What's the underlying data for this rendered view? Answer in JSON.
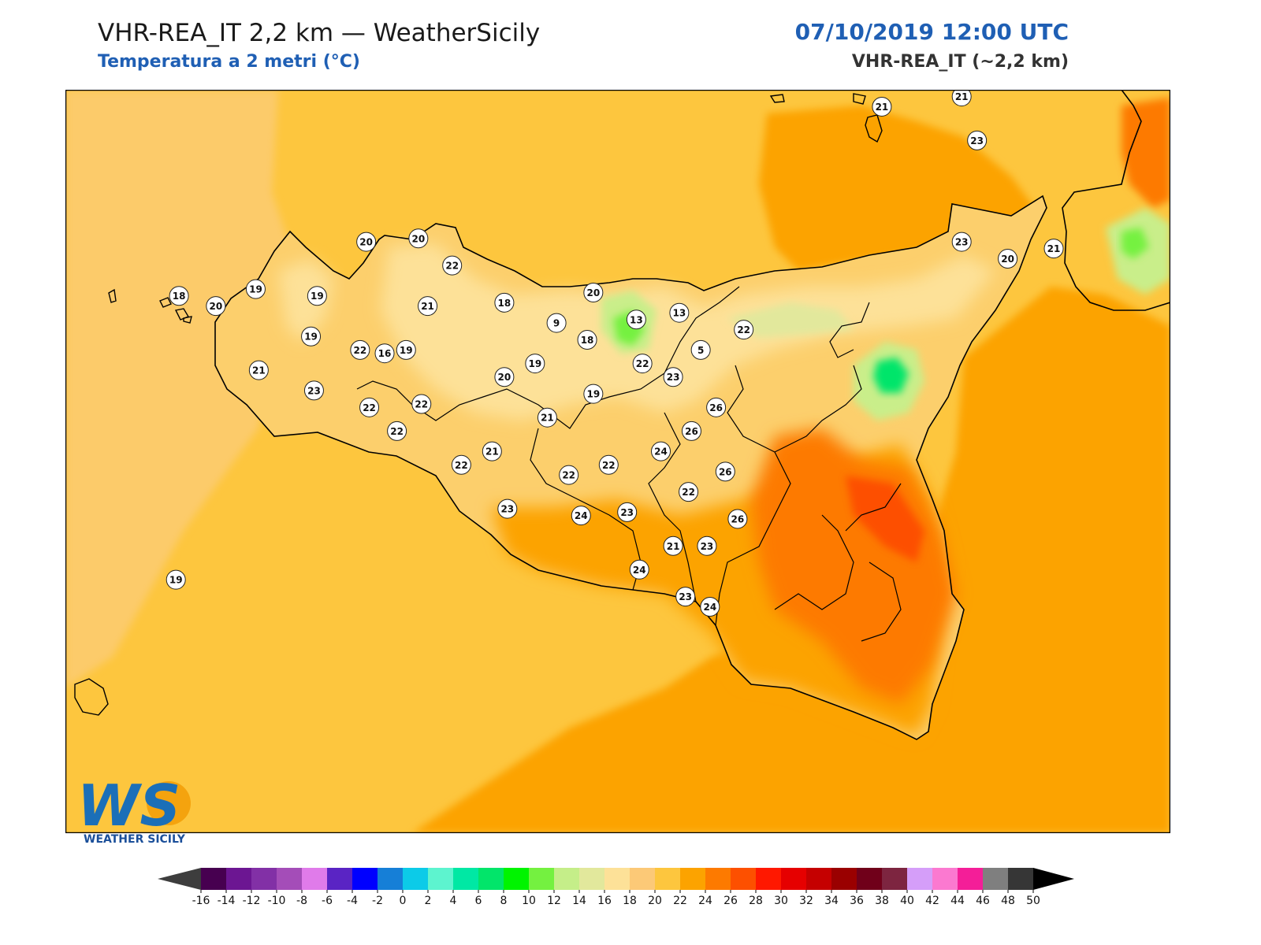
{
  "header": {
    "title": "VHR-REA_IT 2,2 km — WeatherSicily",
    "subtitle": "Temperatura a 2 metri (°C)",
    "datetime": "07/10/2019 12:00 UTC",
    "model": "VHR-REA_IT (~2,2 km)"
  },
  "colors": {
    "sea": "#fdc63e",
    "sea_warm": "#fca300",
    "land_base": "#fccf6c",
    "hot": "#fd7a00",
    "very_hot": "#fd5000",
    "cool": "#fde198",
    "cold": "#c9ee8a",
    "coldest": "#25e039",
    "coast": "#000000",
    "title_blue": "#1f5fb4"
  },
  "labels": [
    {
      "v": "21",
      "x": 14.66,
      "y": 38.55
    },
    {
      "v": "21",
      "x": 14.92,
      "y": 38.58
    },
    {
      "v": "23",
      "x": 14.97,
      "y": 38.45
    },
    {
      "v": "20",
      "x": 12.98,
      "y": 38.15
    },
    {
      "v": "20",
      "x": 13.15,
      "y": 38.16
    },
    {
      "v": "22",
      "x": 13.26,
      "y": 38.08
    },
    {
      "v": "23",
      "x": 14.92,
      "y": 38.15
    },
    {
      "v": "21",
      "x": 15.22,
      "y": 38.13
    },
    {
      "v": "20",
      "x": 15.07,
      "y": 38.1
    },
    {
      "v": "18",
      "x": 12.37,
      "y": 37.99
    },
    {
      "v": "19",
      "x": 12.62,
      "y": 38.01
    },
    {
      "v": "19",
      "x": 12.82,
      "y": 37.99
    },
    {
      "v": "20",
      "x": 12.49,
      "y": 37.96
    },
    {
      "v": "21",
      "x": 13.18,
      "y": 37.96
    },
    {
      "v": "18",
      "x": 13.43,
      "y": 37.97
    },
    {
      "v": "9",
      "x": 13.6,
      "y": 37.91
    },
    {
      "v": "20",
      "x": 13.72,
      "y": 38.0
    },
    {
      "v": "13",
      "x": 13.86,
      "y": 37.92
    },
    {
      "v": "13",
      "x": 14.0,
      "y": 37.94
    },
    {
      "v": "22",
      "x": 14.21,
      "y": 37.89
    },
    {
      "v": "19",
      "x": 12.8,
      "y": 37.87
    },
    {
      "v": "22",
      "x": 12.96,
      "y": 37.83
    },
    {
      "v": "16",
      "x": 13.04,
      "y": 37.82
    },
    {
      "v": "19",
      "x": 13.11,
      "y": 37.83
    },
    {
      "v": "18",
      "x": 13.7,
      "y": 37.86
    },
    {
      "v": "5",
      "x": 14.07,
      "y": 37.83
    },
    {
      "v": "21",
      "x": 12.63,
      "y": 37.77
    },
    {
      "v": "19",
      "x": 13.53,
      "y": 37.79
    },
    {
      "v": "22",
      "x": 13.88,
      "y": 37.79
    },
    {
      "v": "20",
      "x": 13.43,
      "y": 37.75
    },
    {
      "v": "23",
      "x": 13.98,
      "y": 37.75
    },
    {
      "v": "23",
      "x": 12.81,
      "y": 37.71
    },
    {
      "v": "19",
      "x": 13.72,
      "y": 37.7
    },
    {
      "v": "22",
      "x": 12.99,
      "y": 37.66
    },
    {
      "v": "22",
      "x": 13.16,
      "y": 37.67
    },
    {
      "v": "21",
      "x": 13.57,
      "y": 37.63
    },
    {
      "v": "26",
      "x": 14.12,
      "y": 37.66
    },
    {
      "v": "22",
      "x": 13.08,
      "y": 37.59
    },
    {
      "v": "26",
      "x": 14.04,
      "y": 37.59
    },
    {
      "v": "21",
      "x": 13.39,
      "y": 37.53
    },
    {
      "v": "24",
      "x": 13.94,
      "y": 37.53
    },
    {
      "v": "22",
      "x": 13.29,
      "y": 37.49
    },
    {
      "v": "22",
      "x": 13.77,
      "y": 37.49
    },
    {
      "v": "22",
      "x": 13.64,
      "y": 37.46
    },
    {
      "v": "26",
      "x": 14.15,
      "y": 37.47
    },
    {
      "v": "22",
      "x": 14.03,
      "y": 37.41
    },
    {
      "v": "23",
      "x": 13.44,
      "y": 37.36
    },
    {
      "v": "24",
      "x": 13.68,
      "y": 37.34
    },
    {
      "v": "23",
      "x": 13.83,
      "y": 37.35
    },
    {
      "v": "26",
      "x": 14.19,
      "y": 37.33
    },
    {
      "v": "21",
      "x": 13.98,
      "y": 37.25
    },
    {
      "v": "23",
      "x": 14.09,
      "y": 37.25
    },
    {
      "v": "24",
      "x": 13.87,
      "y": 37.18
    },
    {
      "v": "23",
      "x": 14.02,
      "y": 37.1
    },
    {
      "v": "24",
      "x": 14.1,
      "y": 37.07
    },
    {
      "v": "19",
      "x": 12.36,
      "y": 37.15
    }
  ],
  "colorbar": {
    "ticks": [
      "-16",
      "-14",
      "-12",
      "-10",
      "-8",
      "-6",
      "-4",
      "-2",
      "0",
      "2",
      "4",
      "6",
      "8",
      "10",
      "12",
      "14",
      "16",
      "18",
      "20",
      "22",
      "24",
      "26",
      "28",
      "30",
      "32",
      "34",
      "36",
      "38",
      "40",
      "42",
      "44",
      "46",
      "48",
      "50"
    ],
    "colors": [
      "#470050",
      "#6c1692",
      "#8230a6",
      "#a44db8",
      "#e07bea",
      "#5a24c4",
      "#0000ff",
      "#167fd7",
      "#0ccbe8",
      "#5df4cf",
      "#00e8a4",
      "#02e56a",
      "#00f400",
      "#74f140",
      "#c5ee89",
      "#e2e89c",
      "#fde198",
      "#fcc977",
      "#fdc63e",
      "#fca300",
      "#fd7a00",
      "#fd5000",
      "#ff1800",
      "#e60000",
      "#c50000",
      "#9a0000",
      "#70001a",
      "#7d2540",
      "#d59ef9",
      "#fb79d0",
      "#f41e98",
      "#7f7f7f",
      "#363636"
    ],
    "under_color": "#3d3d3d",
    "over_color": "#000000"
  },
  "logo": {
    "text": "WS",
    "caption": "WEATHER SICILY"
  }
}
